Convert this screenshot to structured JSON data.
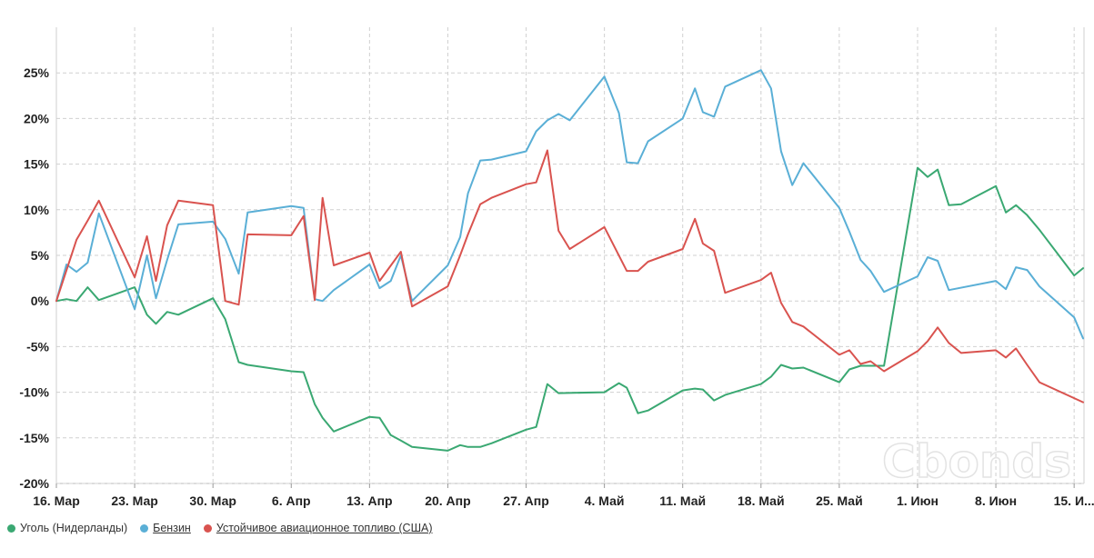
{
  "chart_data": {
    "type": "line",
    "ylim": [
      -20,
      30
    ],
    "y_ticks": [
      {
        "value": 25,
        "label": "25%"
      },
      {
        "value": 20,
        "label": "20%"
      },
      {
        "value": 15,
        "label": "15%"
      },
      {
        "value": 10,
        "label": "10%"
      },
      {
        "value": 5,
        "label": "5%"
      },
      {
        "value": 0,
        "label": "0%"
      },
      {
        "value": -5,
        "label": "-5%"
      },
      {
        "value": -10,
        "label": "-10%"
      },
      {
        "value": -15,
        "label": "-15%"
      },
      {
        "value": -20,
        "label": "-20%"
      }
    ],
    "x_ticks": [
      {
        "date": "2020-03-16",
        "label": "16. Мар"
      },
      {
        "date": "2020-03-23",
        "label": "23. Мар"
      },
      {
        "date": "2020-03-30",
        "label": "30. Мар"
      },
      {
        "date": "2020-04-06",
        "label": "6. Апр"
      },
      {
        "date": "2020-04-13",
        "label": "13. Апр"
      },
      {
        "date": "2020-04-20",
        "label": "20. Апр"
      },
      {
        "date": "2020-04-27",
        "label": "27. Апр"
      },
      {
        "date": "2020-05-04",
        "label": "4. Май"
      },
      {
        "date": "2020-05-11",
        "label": "11. Май"
      },
      {
        "date": "2020-05-18",
        "label": "18. Май"
      },
      {
        "date": "2020-05-25",
        "label": "25. Май"
      },
      {
        "date": "2020-06-01",
        "label": "1. Июн"
      },
      {
        "date": "2020-06-08",
        "label": "8. Июн"
      },
      {
        "date": "2020-06-15",
        "label": "15. И..."
      }
    ],
    "grid": true,
    "legend_position": "bottom-left",
    "series": [
      {
        "name": "Уголь (Нидерланды)",
        "color": "#3aa872",
        "points": [
          [
            "2020-03-16",
            0.0
          ],
          [
            "2020-03-16.9",
            0.2
          ],
          [
            "2020-03-17.8",
            0.0
          ],
          [
            "2020-03-18.8",
            1.5
          ],
          [
            "2020-03-19.8",
            0.1
          ],
          [
            "2020-03-23",
            1.5
          ],
          [
            "2020-03-24.1",
            -1.5
          ],
          [
            "2020-03-24.9",
            -2.5
          ],
          [
            "2020-03-25.9",
            -1.2
          ],
          [
            "2020-03-26.9",
            -1.5
          ],
          [
            "2020-03-30",
            0.3
          ],
          [
            "2020-03-31.1",
            -2.0
          ],
          [
            "2020-04-01.3",
            -6.7
          ],
          [
            "2020-04-02.1",
            -7.0
          ],
          [
            "2020-04-06",
            -7.7
          ],
          [
            "2020-04-07.1",
            -7.8
          ],
          [
            "2020-04-08.1",
            -11.3
          ],
          [
            "2020-04-08.8",
            -12.8
          ],
          [
            "2020-04-09.8",
            -14.3
          ],
          [
            "2020-04-13",
            -12.7
          ],
          [
            "2020-04-13.9",
            -12.8
          ],
          [
            "2020-04-14.9",
            -14.7
          ],
          [
            "2020-04-15.8",
            -15.3
          ],
          [
            "2020-04-16.8",
            -16.0
          ],
          [
            "2020-04-20",
            -16.4
          ],
          [
            "2020-04-21.1",
            -15.8
          ],
          [
            "2020-04-21.8",
            -16.0
          ],
          [
            "2020-04-22.9",
            -16.0
          ],
          [
            "2020-04-23.9",
            -15.6
          ],
          [
            "2020-04-27",
            -14.1
          ],
          [
            "2020-04-27.9",
            -13.8
          ],
          [
            "2020-04-28.9",
            -9.1
          ],
          [
            "2020-04-29.9",
            -10.1
          ],
          [
            "2020-05-04",
            -10.0
          ],
          [
            "2020-05-05.3",
            -9.0
          ],
          [
            "2020-05-06",
            -9.5
          ],
          [
            "2020-05-07",
            -12.3
          ],
          [
            "2020-05-07.9",
            -12.0
          ],
          [
            "2020-05-11",
            -9.8
          ],
          [
            "2020-05-12.1",
            -9.6
          ],
          [
            "2020-05-12.8",
            -9.7
          ],
          [
            "2020-05-13.8",
            -10.9
          ],
          [
            "2020-05-14.8",
            -10.3
          ],
          [
            "2020-05-18",
            -9.1
          ],
          [
            "2020-05-18.9",
            -8.3
          ],
          [
            "2020-05-19.8",
            -7.0
          ],
          [
            "2020-05-20.8",
            -7.4
          ],
          [
            "2020-05-21.8",
            -7.3
          ],
          [
            "2020-05-25",
            -8.9
          ],
          [
            "2020-05-25.9",
            -7.5
          ],
          [
            "2020-05-26.9",
            -7.1
          ],
          [
            "2020-05-27.8",
            -7.1
          ],
          [
            "2020-05-29",
            -7.1
          ],
          [
            "2020-06-01",
            14.6
          ],
          [
            "2020-06-01.9",
            13.6
          ],
          [
            "2020-06-02.8",
            14.4
          ],
          [
            "2020-06-03.8",
            10.5
          ],
          [
            "2020-06-04.9",
            10.6
          ],
          [
            "2020-06-08",
            12.6
          ],
          [
            "2020-06-08.9",
            9.7
          ],
          [
            "2020-06-09.8",
            10.5
          ],
          [
            "2020-06-10.8",
            9.4
          ],
          [
            "2020-06-11.9",
            7.8
          ],
          [
            "2020-06-15",
            2.8
          ],
          [
            "2020-06-15.8",
            3.6
          ]
        ]
      },
      {
        "name": "Бензин",
        "color": "#5aafd6",
        "points": [
          [
            "2020-03-16",
            0.0
          ],
          [
            "2020-03-16.9",
            4.0
          ],
          [
            "2020-03-17.8",
            3.2
          ],
          [
            "2020-03-18.8",
            4.2
          ],
          [
            "2020-03-19.8",
            9.6
          ],
          [
            "2020-03-23",
            -0.9
          ],
          [
            "2020-03-24.1",
            5.0
          ],
          [
            "2020-03-24.9",
            0.3
          ],
          [
            "2020-03-25.9",
            4.5
          ],
          [
            "2020-03-26.9",
            8.4
          ],
          [
            "2020-03-30",
            8.7
          ],
          [
            "2020-03-31.1",
            6.8
          ],
          [
            "2020-04-01.3",
            3.0
          ],
          [
            "2020-04-02.1",
            9.7
          ],
          [
            "2020-04-06",
            10.4
          ],
          [
            "2020-04-07.1",
            10.2
          ],
          [
            "2020-04-08.1",
            0.2
          ],
          [
            "2020-04-08.8",
            0.0
          ],
          [
            "2020-04-09.8",
            1.2
          ],
          [
            "2020-04-13",
            4.0
          ],
          [
            "2020-04-13.9",
            1.4
          ],
          [
            "2020-04-14.9",
            2.2
          ],
          [
            "2020-04-15.8",
            5.0
          ],
          [
            "2020-04-16.8",
            0.0
          ],
          [
            "2020-04-20",
            3.9
          ],
          [
            "2020-04-21.1",
            7.0
          ],
          [
            "2020-04-21.8",
            11.8
          ],
          [
            "2020-04-22.9",
            15.4
          ],
          [
            "2020-04-23.9",
            15.5
          ],
          [
            "2020-04-27",
            16.4
          ],
          [
            "2020-04-27.9",
            18.6
          ],
          [
            "2020-04-28.9",
            19.8
          ],
          [
            "2020-04-29.9",
            20.5
          ],
          [
            "2020-04-30.9",
            19.8
          ],
          [
            "2020-05-04",
            24.6
          ],
          [
            "2020-05-05.3",
            20.6
          ],
          [
            "2020-05-06",
            15.2
          ],
          [
            "2020-05-07",
            15.1
          ],
          [
            "2020-05-07.9",
            17.5
          ],
          [
            "2020-05-11",
            20.0
          ],
          [
            "2020-05-12.1",
            23.3
          ],
          [
            "2020-05-12.8",
            20.7
          ],
          [
            "2020-05-13.8",
            20.2
          ],
          [
            "2020-05-14.8",
            23.5
          ],
          [
            "2020-05-18",
            25.3
          ],
          [
            "2020-05-18.9",
            23.3
          ],
          [
            "2020-05-19.8",
            16.4
          ],
          [
            "2020-05-20.8",
            12.7
          ],
          [
            "2020-05-21.8",
            15.1
          ],
          [
            "2020-05-25",
            10.2
          ],
          [
            "2020-05-25.9",
            7.6
          ],
          [
            "2020-05-26.9",
            4.5
          ],
          [
            "2020-05-27.8",
            3.3
          ],
          [
            "2020-05-29",
            1.0
          ],
          [
            "2020-06-01",
            2.7
          ],
          [
            "2020-06-01.9",
            4.8
          ],
          [
            "2020-06-02.8",
            4.4
          ],
          [
            "2020-06-03.8",
            1.2
          ],
          [
            "2020-06-08",
            2.2
          ],
          [
            "2020-06-08.9",
            1.3
          ],
          [
            "2020-06-09.8",
            3.7
          ],
          [
            "2020-06-10.8",
            3.4
          ],
          [
            "2020-06-11.9",
            1.6
          ],
          [
            "2020-06-15",
            -1.8
          ],
          [
            "2020-06-15.8",
            -4.1
          ]
        ]
      },
      {
        "name": "Устойчивое авиационное топливо (США)",
        "color": "#d9534f",
        "points": [
          [
            "2020-03-16",
            0.0
          ],
          [
            "2020-03-17.8",
            6.7
          ],
          [
            "2020-03-18.8",
            8.8
          ],
          [
            "2020-03-19.8",
            11.0
          ],
          [
            "2020-03-23",
            2.6
          ],
          [
            "2020-03-24.1",
            7.1
          ],
          [
            "2020-03-24.9",
            2.2
          ],
          [
            "2020-03-25.9",
            8.3
          ],
          [
            "2020-03-26.9",
            11.0
          ],
          [
            "2020-03-30",
            10.5
          ],
          [
            "2020-03-31.1",
            0.0
          ],
          [
            "2020-04-01.3",
            -0.4
          ],
          [
            "2020-04-02.1",
            7.3
          ],
          [
            "2020-04-06",
            7.2
          ],
          [
            "2020-04-07.1",
            9.3
          ],
          [
            "2020-04-08.1",
            0.1
          ],
          [
            "2020-04-08.8",
            11.3
          ],
          [
            "2020-04-09.8",
            3.9
          ],
          [
            "2020-04-13",
            5.3
          ],
          [
            "2020-04-13.9",
            2.2
          ],
          [
            "2020-04-15.8",
            5.4
          ],
          [
            "2020-04-16.8",
            -0.6
          ],
          [
            "2020-04-20",
            1.6
          ],
          [
            "2020-04-21.1",
            5.0
          ],
          [
            "2020-04-21.8",
            7.3
          ],
          [
            "2020-04-22.9",
            10.6
          ],
          [
            "2020-04-23.9",
            11.3
          ],
          [
            "2020-04-27",
            12.8
          ],
          [
            "2020-04-27.9",
            13.0
          ],
          [
            "2020-04-28.9",
            16.5
          ],
          [
            "2020-04-29.9",
            7.7
          ],
          [
            "2020-04-30.9",
            5.7
          ],
          [
            "2020-05-04",
            8.1
          ],
          [
            "2020-05-06",
            3.3
          ],
          [
            "2020-05-07",
            3.3
          ],
          [
            "2020-05-07.9",
            4.3
          ],
          [
            "2020-05-11",
            5.7
          ],
          [
            "2020-05-12.1",
            9.0
          ],
          [
            "2020-05-12.8",
            6.3
          ],
          [
            "2020-05-13.8",
            5.5
          ],
          [
            "2020-05-14.8",
            0.9
          ],
          [
            "2020-05-18",
            2.3
          ],
          [
            "2020-05-18.9",
            3.1
          ],
          [
            "2020-05-19.8",
            -0.2
          ],
          [
            "2020-05-20.8",
            -2.3
          ],
          [
            "2020-05-21.8",
            -2.8
          ],
          [
            "2020-05-25",
            -5.9
          ],
          [
            "2020-05-25.9",
            -5.4
          ],
          [
            "2020-05-26.9",
            -6.9
          ],
          [
            "2020-05-27.8",
            -6.6
          ],
          [
            "2020-05-29",
            -7.7
          ],
          [
            "2020-06-01",
            -5.5
          ],
          [
            "2020-06-01.9",
            -4.4
          ],
          [
            "2020-06-02.8",
            -2.9
          ],
          [
            "2020-06-03.8",
            -4.6
          ],
          [
            "2020-06-04.9",
            -5.7
          ],
          [
            "2020-06-08",
            -5.4
          ],
          [
            "2020-06-08.9",
            -6.2
          ],
          [
            "2020-06-09.8",
            -5.2
          ],
          [
            "2020-06-10.8",
            -7.0
          ],
          [
            "2020-06-11.9",
            -8.9
          ],
          [
            "2020-06-15.8",
            -11.1
          ]
        ]
      }
    ]
  },
  "legend": [
    {
      "label": "Уголь (Нидерланды)",
      "color": "#3aa872",
      "underlined": false
    },
    {
      "label": "Бензин",
      "color": "#5aafd6",
      "underlined": true
    },
    {
      "label": "Устойчивое авиационное топливо (США)",
      "color": "#d9534f",
      "underlined": true
    }
  ],
  "watermark": "Cbonds"
}
